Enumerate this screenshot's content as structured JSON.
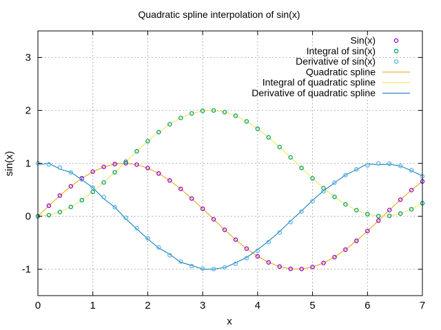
{
  "chart_data": {
    "type": "line",
    "title": "Quadratic spline interpolation of sin(x)",
    "xlabel": "x",
    "ylabel": "sin(x)",
    "xlim": [
      0,
      7
    ],
    "ylim": [
      -1.5,
      3.5
    ],
    "xticks": [
      "0",
      "1",
      "2",
      "3",
      "4",
      "5",
      "6",
      "7"
    ],
    "yticks": [
      "-1",
      "0",
      "1",
      "2",
      "3"
    ],
    "grid": true,
    "legend_position": "top-right",
    "x": [
      0,
      0.2,
      0.4,
      0.6,
      0.8,
      1.0,
      1.2,
      1.4,
      1.6,
      1.8,
      2.0,
      2.2,
      2.4,
      2.6,
      2.8,
      3.0,
      3.2,
      3.4,
      3.6,
      3.8,
      4.0,
      4.2,
      4.4,
      4.6,
      4.8,
      5.0,
      5.2,
      5.4,
      5.6,
      5.8,
      6.0,
      6.2,
      6.4,
      6.6,
      6.8,
      7.0
    ],
    "series": [
      {
        "name": "Sin(x)",
        "kind": "points",
        "color": "#9400d3",
        "values": [
          0.0,
          0.199,
          0.389,
          0.565,
          0.717,
          0.841,
          0.932,
          0.985,
          1.0,
          0.974,
          0.909,
          0.808,
          0.675,
          0.516,
          0.335,
          0.141,
          -0.058,
          -0.256,
          -0.443,
          -0.612,
          -0.757,
          -0.872,
          -0.952,
          -0.994,
          -0.996,
          -0.959,
          -0.883,
          -0.773,
          -0.631,
          -0.465,
          -0.279,
          -0.083,
          0.117,
          0.312,
          0.494,
          0.657
        ]
      },
      {
        "name": "Integral of sin(x)",
        "kind": "points",
        "color": "#009e73",
        "values": [
          0.0,
          0.02,
          0.079,
          0.175,
          0.303,
          0.46,
          0.638,
          0.83,
          1.029,
          1.227,
          1.416,
          1.589,
          1.737,
          1.857,
          1.942,
          1.99,
          1.998,
          1.967,
          1.897,
          1.791,
          1.654,
          1.49,
          1.307,
          1.112,
          0.912,
          0.716,
          0.531,
          0.366,
          0.224,
          0.114,
          0.04,
          0.003,
          0.007,
          0.05,
          0.131,
          0.246
        ]
      },
      {
        "name": "Derivative of sin(x)",
        "kind": "points",
        "color": "#56b4e9",
        "values": [
          1.0,
          0.98,
          0.921,
          0.825,
          0.697,
          0.54,
          0.362,
          0.17,
          -0.029,
          -0.227,
          -0.416,
          -0.589,
          -0.737,
          -0.857,
          -0.942,
          -0.99,
          -0.998,
          -0.967,
          -0.897,
          -0.791,
          -0.654,
          -0.49,
          -0.307,
          -0.112,
          0.088,
          0.284,
          0.469,
          0.634,
          0.776,
          0.886,
          0.96,
          0.997,
          0.993,
          0.95,
          0.869,
          0.754
        ]
      },
      {
        "name": "Quadratic spline",
        "kind": "line",
        "color": "#e69f00",
        "values": [
          0.0,
          0.199,
          0.389,
          0.565,
          0.717,
          0.841,
          0.932,
          0.985,
          1.0,
          0.974,
          0.909,
          0.808,
          0.675,
          0.516,
          0.335,
          0.141,
          -0.058,
          -0.256,
          -0.443,
          -0.612,
          -0.757,
          -0.872,
          -0.952,
          -0.994,
          -0.996,
          -0.959,
          -0.883,
          -0.773,
          -0.631,
          -0.465,
          -0.279,
          -0.083,
          0.117,
          0.312,
          0.494,
          0.657
        ]
      },
      {
        "name": "Integral of quadratic spline",
        "kind": "line",
        "color": "#f0e442",
        "values": [
          0.0,
          0.02,
          0.079,
          0.175,
          0.303,
          0.46,
          0.638,
          0.83,
          1.029,
          1.227,
          1.416,
          1.589,
          1.737,
          1.857,
          1.942,
          1.99,
          1.998,
          1.967,
          1.897,
          1.791,
          1.654,
          1.49,
          1.307,
          1.112,
          0.912,
          0.716,
          0.531,
          0.366,
          0.224,
          0.114,
          0.04,
          0.003,
          0.007,
          0.05,
          0.131,
          0.246
        ]
      },
      {
        "name": "Derivative of quadratic spline",
        "kind": "line",
        "color": "#0072b2",
        "values": [
          0.97,
          1.0,
          0.89,
          0.83,
          0.69,
          0.54,
          0.33,
          0.17,
          -0.05,
          -0.24,
          -0.43,
          -0.6,
          -0.72,
          -0.87,
          -0.93,
          -1.0,
          -1.0,
          -0.97,
          -0.88,
          -0.78,
          -0.63,
          -0.47,
          -0.29,
          -0.09,
          0.1,
          0.3,
          0.48,
          0.63,
          0.78,
          0.88,
          0.99,
          0.97,
          0.98,
          0.95,
          0.86,
          0.76
        ]
      }
    ]
  }
}
